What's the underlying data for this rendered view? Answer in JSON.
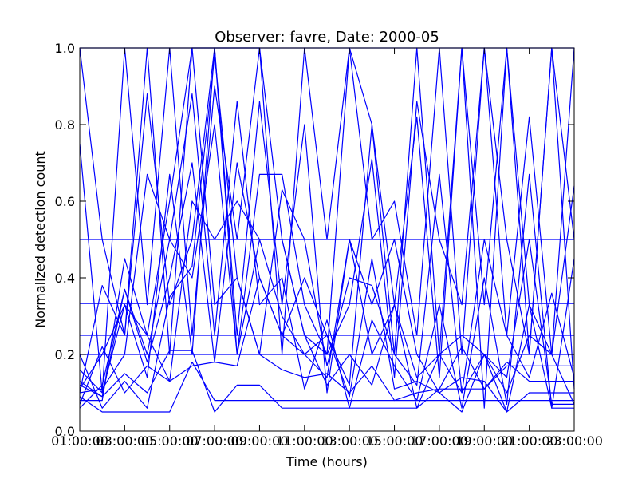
{
  "chart_data": {
    "type": "line",
    "title": "Observer: favre, Date: 2000-05",
    "xlabel": "Time (hours)",
    "ylabel": "Normalized detection count",
    "xlim": [
      1,
      23
    ],
    "ylim": [
      0.0,
      1.0
    ],
    "x_ticks": [
      {
        "value": 1,
        "label": "01:00:00"
      },
      {
        "value": 3,
        "label": "03:00:00"
      },
      {
        "value": 5,
        "label": "05:00:00"
      },
      {
        "value": 7,
        "label": "07:00:00"
      },
      {
        "value": 9,
        "label": "09:00:00"
      },
      {
        "value": 11,
        "label": "11:00:00"
      },
      {
        "value": 13,
        "label": "13:00:00"
      },
      {
        "value": 15,
        "label": "15:00:00"
      },
      {
        "value": 17,
        "label": "17:00:00"
      },
      {
        "value": 19,
        "label": "19:00:00"
      },
      {
        "value": 21,
        "label": "21:00:00"
      },
      {
        "value": 23,
        "label": "23:00:00"
      }
    ],
    "y_ticks": [
      {
        "value": 0.0,
        "label": "0.0"
      },
      {
        "value": 0.2,
        "label": "0.2"
      },
      {
        "value": 0.4,
        "label": "0.4"
      },
      {
        "value": 0.6,
        "label": "0.6"
      },
      {
        "value": 0.8,
        "label": "0.8"
      },
      {
        "value": 1.0,
        "label": "1.0"
      }
    ],
    "grid": false,
    "line_color": "#0000ff",
    "x": [
      1,
      2,
      3,
      4,
      5,
      6,
      7,
      8,
      9,
      10,
      11,
      12,
      13,
      14,
      15,
      16,
      17,
      18,
      19,
      20,
      21,
      22,
      23
    ],
    "series": [
      {
        "values": [
          1.0,
          1.0,
          1.0,
          1.0,
          1.0,
          1.0,
          1.0,
          1.0,
          1.0,
          1.0,
          1.0,
          1.0,
          1.0,
          1.0,
          1.0,
          1.0,
          1.0,
          1.0,
          1.0,
          1.0,
          1.0,
          1.0,
          1.0
        ]
      },
      {
        "values": [
          0.5,
          0.5,
          0.5,
          0.5,
          0.5,
          0.5,
          0.5,
          0.5,
          0.5,
          0.5,
          0.5,
          0.5,
          0.5,
          0.5,
          0.5,
          0.5,
          0.5,
          0.5,
          0.5,
          0.5,
          0.5,
          0.5,
          0.5
        ]
      },
      {
        "values": [
          0.333,
          0.333,
          0.333,
          0.333,
          0.333,
          0.333,
          0.333,
          0.333,
          0.333,
          0.333,
          0.333,
          0.333,
          0.333,
          0.333,
          0.333,
          0.333,
          0.333,
          0.333,
          0.333,
          0.333,
          0.333,
          0.333,
          0.333
        ]
      },
      {
        "values": [
          0.25,
          0.25,
          0.25,
          0.25,
          0.25,
          0.25,
          0.25,
          0.25,
          0.25,
          0.25,
          0.25,
          0.25,
          0.25,
          0.25,
          0.25,
          0.25,
          0.25,
          0.25,
          0.25,
          0.25,
          0.25,
          0.25,
          0.25
        ]
      },
      {
        "values": [
          0.2,
          0.2,
          0.2,
          0.2,
          0.2,
          0.2,
          0.2,
          0.2,
          0.2,
          0.2,
          0.2,
          0.2,
          0.2,
          0.2,
          0.2,
          0.2,
          0.2,
          0.2,
          0.2,
          0.2,
          0.2,
          0.2,
          0.2
        ]
      },
      {
        "values": [
          1.0,
          0.5,
          0.25,
          1.0,
          0.2,
          1.0,
          1.0,
          1.0,
          1.0,
          0.2,
          1.0,
          0.5,
          1.0,
          0.8,
          0.2,
          1.0,
          0.2,
          1.0,
          0.33,
          1.0,
          0.2,
          1.0,
          0.11
        ]
      },
      {
        "values": [
          0.75,
          0.1,
          1.0,
          0.33,
          1.0,
          0.25,
          0.9,
          0.5,
          1.0,
          0.5,
          0.25,
          0.2,
          1.0,
          0.5,
          0.6,
          0.25,
          1.0,
          0.2,
          1.0,
          0.5,
          0.2,
          1.0,
          0.5
        ]
      },
      {
        "values": [
          0.11,
          0.2,
          0.33,
          0.14,
          0.67,
          0.2,
          1.0,
          0.25,
          0.86,
          0.33,
          0.8,
          0.1,
          0.5,
          0.2,
          0.33,
          0.82,
          0.14,
          1.0,
          0.06,
          1.0,
          0.33,
          0.2,
          1.0
        ]
      },
      {
        "values": [
          0.1,
          0.38,
          0.25,
          0.88,
          0.33,
          0.5,
          1.0,
          0.2,
          0.67,
          0.67,
          0.33,
          0.2,
          0.33,
          0.71,
          0.14,
          0.86,
          0.5,
          0.33,
          1.0,
          0.25,
          0.82,
          0.2,
          0.64
        ]
      },
      {
        "values": [
          0.08,
          0.08,
          0.45,
          0.25,
          0.6,
          1.0,
          0.33,
          0.4,
          0.2,
          0.63,
          0.5,
          0.17,
          0.4,
          0.38,
          0.2,
          0.12,
          0.67,
          0.1,
          0.5,
          0.25,
          0.14,
          0.36,
          0.14
        ]
      },
      {
        "values": [
          0.06,
          0.12,
          0.37,
          0.2,
          0.5,
          0.88,
          0.25,
          0.86,
          0.33,
          0.4,
          0.11,
          0.29,
          0.06,
          0.29,
          0.17,
          0.08,
          0.33,
          0.06,
          0.4,
          0.07,
          0.67,
          0.06,
          0.45
        ]
      },
      {
        "values": [
          0.2,
          0.06,
          0.13,
          0.06,
          0.35,
          0.43,
          0.98,
          0.4,
          0.2,
          0.16,
          0.14,
          0.15,
          0.1,
          0.17,
          0.08,
          0.1,
          0.11,
          0.22,
          0.11,
          0.17,
          0.17,
          0.17,
          0.17
        ]
      },
      {
        "values": [
          0.13,
          0.09,
          0.15,
          0.1,
          0.21,
          0.21,
          0.05,
          0.12,
          0.12,
          0.06,
          0.06,
          0.06,
          0.06,
          0.06,
          0.06,
          0.06,
          0.11,
          0.11,
          0.11,
          0.18,
          0.13,
          0.13,
          0.13
        ]
      },
      {
        "values": [
          0.09,
          0.05,
          0.05,
          0.05,
          0.05,
          0.18,
          0.08,
          0.08,
          0.08,
          0.08,
          0.08,
          0.08,
          0.08,
          0.08,
          0.08,
          0.08,
          0.08,
          0.08,
          0.08,
          0.08,
          0.08,
          0.08,
          0.08
        ]
      },
      {
        "values": [
          0.07,
          0.22,
          0.1,
          0.17,
          0.13,
          0.17,
          0.18,
          0.17,
          0.4,
          0.25,
          0.2,
          0.25,
          0.09,
          0.45,
          0.11,
          0.13,
          0.1,
          0.05,
          0.2,
          0.05,
          0.1,
          0.1,
          0.1
        ]
      },
      {
        "values": [
          0.16,
          0.1,
          0.33,
          0.25,
          0.13,
          0.6,
          0.5,
          0.6,
          0.5,
          0.3,
          0.2,
          0.14,
          0.5,
          0.33,
          0.5,
          0.2,
          0.1,
          0.14,
          0.13,
          0.05,
          0.33,
          0.06,
          0.06
        ]
      },
      {
        "values": [
          0.1,
          0.11,
          0.2,
          0.67,
          0.5,
          0.4,
          0.8,
          0.2,
          0.5,
          0.5,
          0.25,
          0.12,
          0.2,
          0.12,
          0.33,
          0.06,
          0.2,
          0.25,
          0.2,
          0.14,
          0.5,
          0.07,
          0.07
        ]
      },
      {
        "values": [
          0.12,
          0.09,
          0.37,
          0.18,
          0.4,
          0.7,
          0.18,
          0.7,
          0.4,
          0.25,
          0.4,
          0.25,
          0.12,
          0.8,
          0.33,
          0.14,
          0.2,
          0.1,
          0.2,
          0.1,
          0.25,
          0.2,
          0.07
        ]
      }
    ]
  }
}
